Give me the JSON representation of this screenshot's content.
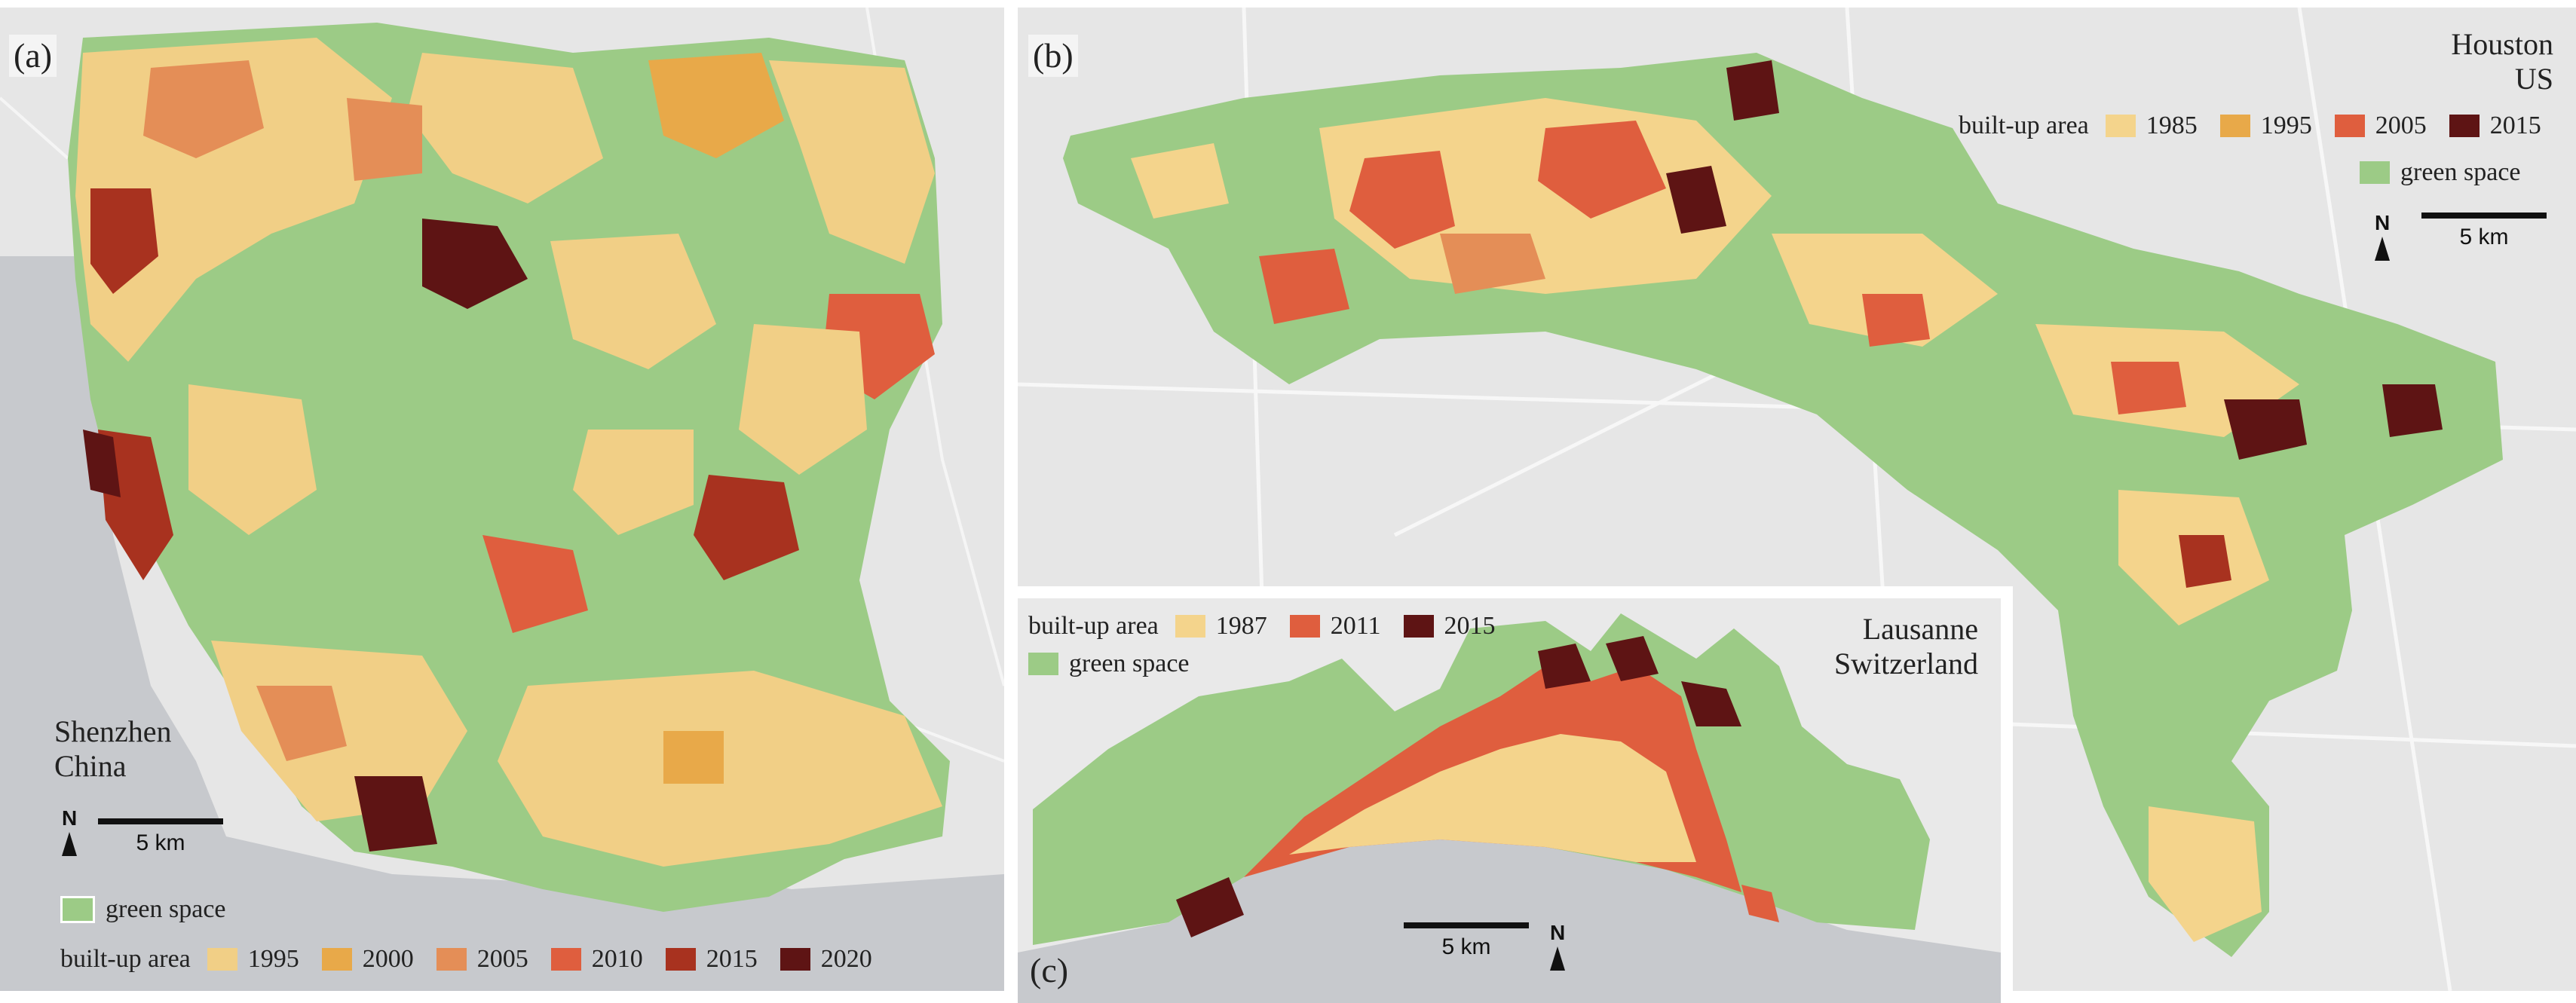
{
  "colors": {
    "green": "#9ccb86",
    "y1985": "#f4d48c",
    "y1995": "#f1cf86",
    "y2000": "#e8a949",
    "y2005": "#e48e57",
    "y2010": "#df5e3e",
    "y2011": "#df5e3e",
    "y2015": "#a8321f",
    "y2020": "#5e1414",
    "dark2015": "#5e1414",
    "water": "#c7c9cd",
    "land": "#e7e7e7"
  },
  "panel_a": {
    "label": "(a)",
    "place_line1": "Shenzhen",
    "place_line2": "China",
    "north": "N",
    "scale": "5 km",
    "green_label": "green space",
    "builtup_title": "built-up area",
    "years": [
      "1995",
      "2000",
      "2005",
      "2010",
      "2015",
      "2020"
    ]
  },
  "panel_b": {
    "label": "(b)",
    "place_line1": "Houston",
    "place_line2": "US",
    "builtup_title": "built-up area",
    "years": [
      "1985",
      "1995",
      "2005",
      "2015"
    ],
    "green_label": "green space",
    "north": "N",
    "scale": "5 km"
  },
  "panel_c": {
    "label": "(c)",
    "place_line1": "Lausanne",
    "place_line2": "Switzerland",
    "builtup_title": "built-up area",
    "years": [
      "1987",
      "2011",
      "2015"
    ],
    "green_label": "green space",
    "north": "N",
    "scale": "5 km"
  }
}
